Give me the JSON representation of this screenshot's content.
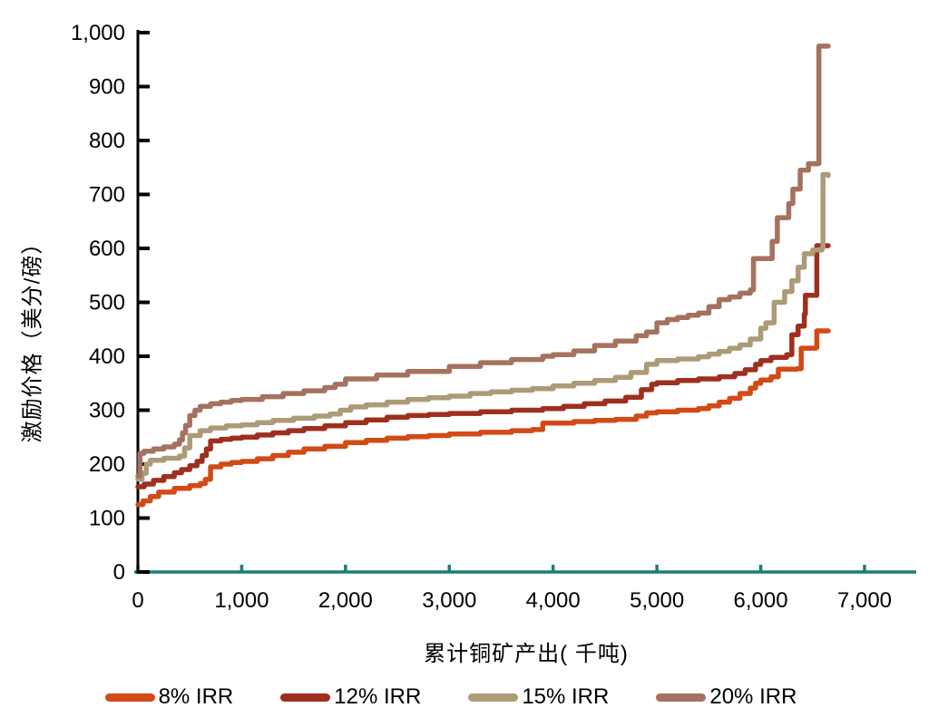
{
  "styles": {
    "background": "#FFFFFF",
    "text_color": "#000000",
    "x_axis_color": "#1E7B7B",
    "y_axis_color": "#000000",
    "series_colors": [
      "#D24A15",
      "#9E2F1E",
      "#AB9B76",
      "#A4725F"
    ]
  },
  "chart_data": {
    "type": "line",
    "title": "",
    "xlabel": "累计铜矿产出( 千吨)",
    "ylabel": "激励价格（美分/磅）",
    "xlim": [
      0,
      7450
    ],
    "ylim": [
      0,
      1000
    ],
    "x_ticks": [
      0,
      1000,
      2000,
      3000,
      4000,
      5000,
      6000,
      7000
    ],
    "x_tick_labels": [
      "0",
      "1,000",
      "2,000",
      "3,000",
      "4,000",
      "5,000",
      "6,000",
      "7,000"
    ],
    "y_ticks": [
      0,
      100,
      200,
      300,
      400,
      500,
      600,
      700,
      800,
      900,
      1000
    ],
    "y_tick_labels": [
      "0",
      "100",
      "200",
      "300",
      "400",
      "500",
      "600",
      "700",
      "800",
      "900",
      "1,000"
    ],
    "grid": false,
    "legend_position": "bottom",
    "line_style": "step-after",
    "series": [
      {
        "name": "8% IRR",
        "color": "#D24A15",
        "points": [
          [
            0,
            125
          ],
          [
            50,
            132
          ],
          [
            120,
            140
          ],
          [
            200,
            148
          ],
          [
            350,
            155
          ],
          [
            500,
            160
          ],
          [
            600,
            164
          ],
          [
            650,
            172
          ],
          [
            700,
            195
          ],
          [
            800,
            200
          ],
          [
            900,
            203
          ],
          [
            1000,
            205
          ],
          [
            1150,
            210
          ],
          [
            1300,
            216
          ],
          [
            1450,
            222
          ],
          [
            1600,
            228
          ],
          [
            1800,
            233
          ],
          [
            2000,
            240
          ],
          [
            2200,
            244
          ],
          [
            2400,
            248
          ],
          [
            2600,
            251
          ],
          [
            2800,
            253
          ],
          [
            3000,
            256
          ],
          [
            3300,
            259
          ],
          [
            3600,
            262
          ],
          [
            3800,
            264
          ],
          [
            3900,
            276
          ],
          [
            4200,
            279
          ],
          [
            4400,
            281
          ],
          [
            4600,
            283
          ],
          [
            4800,
            289
          ],
          [
            4900,
            295
          ],
          [
            5000,
            297
          ],
          [
            5200,
            300
          ],
          [
            5400,
            303
          ],
          [
            5500,
            308
          ],
          [
            5600,
            315
          ],
          [
            5700,
            322
          ],
          [
            5800,
            331
          ],
          [
            5900,
            341
          ],
          [
            5950,
            350
          ],
          [
            6000,
            356
          ],
          [
            6100,
            362
          ],
          [
            6170,
            376
          ],
          [
            6350,
            377
          ],
          [
            6390,
            415
          ],
          [
            6530,
            416
          ],
          [
            6540,
            447
          ],
          [
            6650,
            447
          ]
        ]
      },
      {
        "name": "12% IRR",
        "color": "#9E2F1E",
        "points": [
          [
            0,
            158
          ],
          [
            60,
            163
          ],
          [
            150,
            170
          ],
          [
            250,
            177
          ],
          [
            350,
            184
          ],
          [
            420,
            190
          ],
          [
            500,
            197
          ],
          [
            570,
            205
          ],
          [
            620,
            216
          ],
          [
            660,
            228
          ],
          [
            700,
            243
          ],
          [
            800,
            246
          ],
          [
            900,
            248
          ],
          [
            1000,
            250
          ],
          [
            1150,
            254
          ],
          [
            1300,
            258
          ],
          [
            1450,
            262
          ],
          [
            1600,
            266
          ],
          [
            1800,
            271
          ],
          [
            2000,
            277
          ],
          [
            2200,
            282
          ],
          [
            2400,
            287
          ],
          [
            2600,
            290
          ],
          [
            2800,
            292
          ],
          [
            3000,
            294
          ],
          [
            3300,
            297
          ],
          [
            3600,
            300
          ],
          [
            3900,
            303
          ],
          [
            4100,
            307
          ],
          [
            4300,
            312
          ],
          [
            4500,
            317
          ],
          [
            4700,
            324
          ],
          [
            4850,
            338
          ],
          [
            4950,
            348
          ],
          [
            5000,
            351
          ],
          [
            5200,
            355
          ],
          [
            5400,
            358
          ],
          [
            5600,
            362
          ],
          [
            5750,
            368
          ],
          [
            5850,
            375
          ],
          [
            5950,
            385
          ],
          [
            6000,
            392
          ],
          [
            6100,
            398
          ],
          [
            6250,
            403
          ],
          [
            6300,
            440
          ],
          [
            6360,
            456
          ],
          [
            6420,
            478
          ],
          [
            6430,
            513
          ],
          [
            6530,
            513
          ],
          [
            6540,
            605
          ],
          [
            6650,
            605
          ]
        ]
      },
      {
        "name": "15% IRR",
        "color": "#AB9B76",
        "points": [
          [
            0,
            172
          ],
          [
            40,
            183
          ],
          [
            80,
            200
          ],
          [
            120,
            207
          ],
          [
            250,
            211
          ],
          [
            400,
            215
          ],
          [
            450,
            230
          ],
          [
            500,
            253
          ],
          [
            600,
            262
          ],
          [
            700,
            267
          ],
          [
            850,
            271
          ],
          [
            1000,
            273
          ],
          [
            1150,
            277
          ],
          [
            1300,
            281
          ],
          [
            1500,
            285
          ],
          [
            1700,
            289
          ],
          [
            1850,
            293
          ],
          [
            1950,
            300
          ],
          [
            2050,
            306
          ],
          [
            2200,
            310
          ],
          [
            2400,
            315
          ],
          [
            2600,
            320
          ],
          [
            2800,
            323
          ],
          [
            3000,
            326
          ],
          [
            3200,
            331
          ],
          [
            3400,
            334
          ],
          [
            3600,
            337
          ],
          [
            3800,
            340
          ],
          [
            4000,
            345
          ],
          [
            4200,
            350
          ],
          [
            4400,
            355
          ],
          [
            4600,
            361
          ],
          [
            4750,
            370
          ],
          [
            4900,
            385
          ],
          [
            5000,
            392
          ],
          [
            5200,
            395
          ],
          [
            5400,
            399
          ],
          [
            5500,
            404
          ],
          [
            5600,
            409
          ],
          [
            5700,
            415
          ],
          [
            5800,
            421
          ],
          [
            5900,
            432
          ],
          [
            6000,
            452
          ],
          [
            6050,
            462
          ],
          [
            6130,
            500
          ],
          [
            6230,
            520
          ],
          [
            6300,
            540
          ],
          [
            6360,
            565
          ],
          [
            6420,
            590
          ],
          [
            6500,
            597
          ],
          [
            6590,
            601
          ],
          [
            6600,
            737
          ],
          [
            6650,
            735
          ]
        ]
      },
      {
        "name": "20% IRR",
        "color": "#A4725F",
        "points": [
          [
            0,
            178
          ],
          [
            20,
            220
          ],
          [
            60,
            224
          ],
          [
            150,
            228
          ],
          [
            250,
            232
          ],
          [
            350,
            237
          ],
          [
            400,
            245
          ],
          [
            430,
            258
          ],
          [
            460,
            272
          ],
          [
            500,
            290
          ],
          [
            550,
            300
          ],
          [
            600,
            307
          ],
          [
            700,
            312
          ],
          [
            800,
            315
          ],
          [
            900,
            318
          ],
          [
            1000,
            320
          ],
          [
            1200,
            325
          ],
          [
            1400,
            331
          ],
          [
            1600,
            336
          ],
          [
            1800,
            342
          ],
          [
            1900,
            348
          ],
          [
            2000,
            358
          ],
          [
            2300,
            365
          ],
          [
            2600,
            372
          ],
          [
            3000,
            381
          ],
          [
            3300,
            388
          ],
          [
            3600,
            394
          ],
          [
            3900,
            400
          ],
          [
            4000,
            403
          ],
          [
            4200,
            410
          ],
          [
            4400,
            420
          ],
          [
            4600,
            428
          ],
          [
            4800,
            438
          ],
          [
            4900,
            445
          ],
          [
            5000,
            462
          ],
          [
            5100,
            468
          ],
          [
            5200,
            472
          ],
          [
            5300,
            476
          ],
          [
            5400,
            480
          ],
          [
            5500,
            492
          ],
          [
            5600,
            505
          ],
          [
            5700,
            510
          ],
          [
            5800,
            517
          ],
          [
            5900,
            523
          ],
          [
            5930,
            581
          ],
          [
            6100,
            581
          ],
          [
            6110,
            613
          ],
          [
            6150,
            613
          ],
          [
            6160,
            657
          ],
          [
            6260,
            657
          ],
          [
            6270,
            683
          ],
          [
            6300,
            683
          ],
          [
            6310,
            710
          ],
          [
            6370,
            710
          ],
          [
            6380,
            745
          ],
          [
            6450,
            745
          ],
          [
            6460,
            757
          ],
          [
            6550,
            757
          ],
          [
            6560,
            975
          ],
          [
            6650,
            975
          ]
        ]
      }
    ]
  }
}
